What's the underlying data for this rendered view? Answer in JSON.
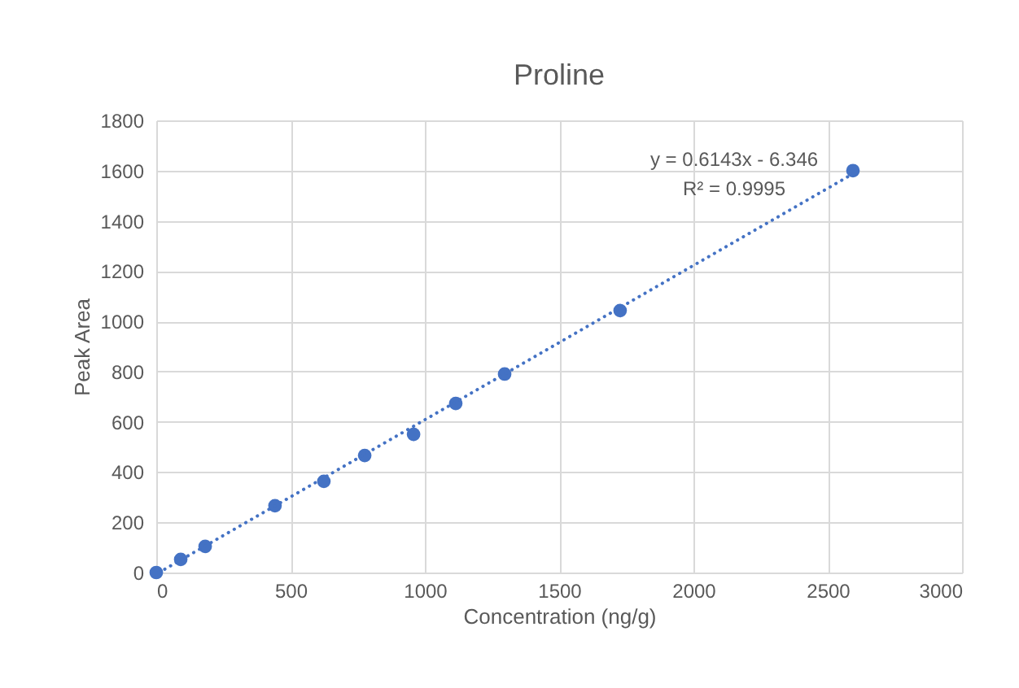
{
  "chart_data": {
    "type": "scatter",
    "title": "Proline",
    "xlabel": "Concentration (ng/g)",
    "ylabel": "Peak Area",
    "xlim": [
      0,
      3000
    ],
    "xticks": [
      0,
      500,
      1000,
      1500,
      2000,
      2500,
      3000
    ],
    "ylim": [
      0,
      1800
    ],
    "yticks": [
      0,
      200,
      400,
      600,
      800,
      1000,
      1200,
      1400,
      1600,
      1800
    ],
    "grid": true,
    "marker": "circle",
    "series": [
      {
        "color": "#4472c4",
        "x": [
          0,
          91,
          182,
          442,
          624,
          776,
          958,
          1115,
          1297,
          1727,
          2594
        ],
        "values": [
          0,
          52,
          104,
          266,
          363,
          466,
          550,
          673,
          790,
          1043,
          1600
        ]
      },
      {
        "type": "line",
        "color": "#4472c4",
        "line_style": "dotted",
        "marker": "none",
        "x": [
          10,
          2600
        ],
        "values": [
          0,
          1591
        ]
      }
    ],
    "annotations": [
      "y = 0.6143x - 6.346",
      "R² = 0.9995"
    ]
  }
}
